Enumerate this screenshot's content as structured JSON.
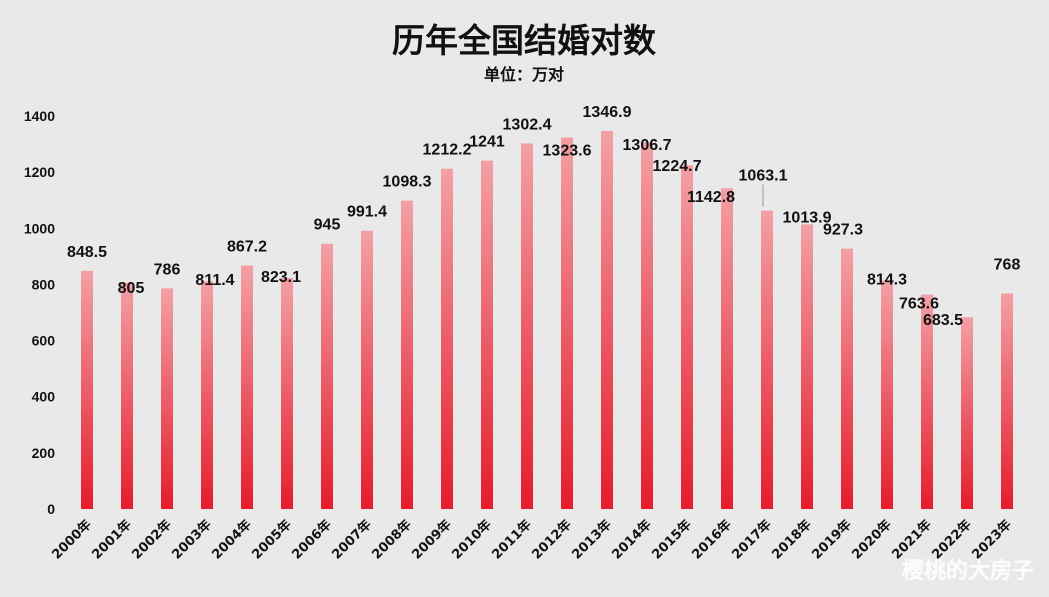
{
  "chart_data": {
    "type": "bar",
    "title": "历年全国结婚对数",
    "subtitle": "单位：万对",
    "categories": [
      "2000年",
      "2001年",
      "2002年",
      "2003年",
      "2004年",
      "2005年",
      "2006年",
      "2007年",
      "2008年",
      "2009年",
      "2010年",
      "2011年",
      "2012年",
      "2013年",
      "2014年",
      "2015年",
      "2016年",
      "2017年",
      "2018年",
      "2019年",
      "2020年",
      "2021年",
      "2022年",
      "2023年"
    ],
    "values": [
      848.5,
      805,
      786,
      811.4,
      867.2,
      823.1,
      945,
      991.4,
      1098.3,
      1212.2,
      1241,
      1302.4,
      1323.6,
      1346.9,
      1306.7,
      1224.7,
      1142.8,
      1063.1,
      1013.9,
      927.3,
      814.3,
      763.6,
      683.5,
      768
    ],
    "value_labels": [
      "848.5",
      "805",
      "786",
      "811.4",
      "867.2",
      "823.1",
      "945",
      "991.4",
      "1098.3",
      "1212.2",
      "1241",
      "1302.4",
      "1323.6",
      "1346.9",
      "1306.7",
      "1224.7",
      "1142.8",
      "1063.1",
      "1013.9",
      "927.3",
      "814.3",
      "763.6",
      "683.5",
      "768"
    ],
    "ylim": [
      0,
      1400
    ],
    "yticks": [
      "0",
      "200",
      "400",
      "600",
      "800",
      "1000",
      "1200",
      "1400"
    ],
    "grid": false,
    "legend": "none",
    "colors": {
      "bar_top": "#f3a0a5",
      "bar_bottom": "#e51c2c",
      "background": "#e9e9e9"
    }
  },
  "watermark": "樱桃的大房子"
}
